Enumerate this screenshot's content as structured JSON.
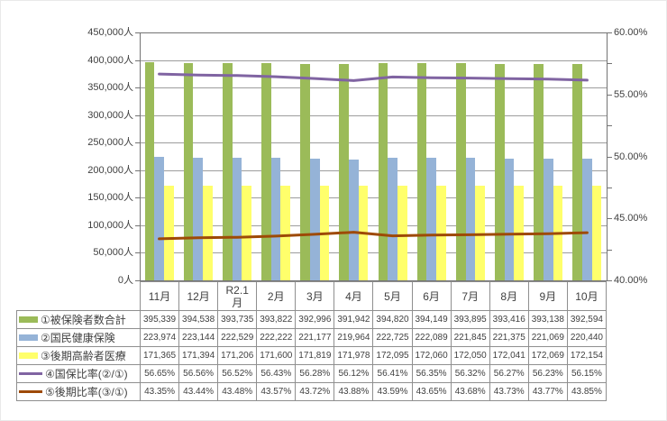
{
  "chart_data": {
    "type": "combo",
    "title": "",
    "grid": "horizontal-major-left-axis",
    "legend_position": "data-table-left",
    "categories": [
      "11月",
      "12月",
      "R2.1\n月",
      "2月",
      "3月",
      "4月",
      "5月",
      "6月",
      "7月",
      "8月",
      "9月",
      "10月"
    ],
    "series": [
      {
        "name": "①被保険者数合計",
        "chart": "bar",
        "axis": "left",
        "color": "#9BBB59",
        "values": [
          395339,
          394538,
          393735,
          393822,
          392996,
          391942,
          394820,
          394149,
          393895,
          393416,
          393138,
          392594
        ],
        "labels": [
          "395,339",
          "394,538",
          "393,735",
          "393,822",
          "392,996",
          "391,942",
          "394,820",
          "394,149",
          "393,895",
          "393,416",
          "393,138",
          "392,594"
        ]
      },
      {
        "name": "②国民健康保険",
        "chart": "bar",
        "axis": "left",
        "color": "#95B3D7",
        "values": [
          223974,
          223144,
          222529,
          222222,
          221177,
          219964,
          222725,
          222089,
          221845,
          221375,
          221069,
          220440
        ],
        "labels": [
          "223,974",
          "223,144",
          "222,529",
          "222,222",
          "221,177",
          "219,964",
          "222,725",
          "222,089",
          "221,845",
          "221,375",
          "221,069",
          "220,440"
        ]
      },
      {
        "name": "③後期高齢者医療",
        "chart": "bar",
        "axis": "left",
        "color": "#FFFF6B",
        "values": [
          171365,
          171394,
          171206,
          171600,
          171819,
          171978,
          172095,
          172060,
          172050,
          172041,
          172069,
          172154
        ],
        "labels": [
          "171,365",
          "171,394",
          "171,206",
          "171,600",
          "171,819",
          "171,978",
          "172,095",
          "172,060",
          "172,050",
          "172,041",
          "172,069",
          "172,154"
        ]
      },
      {
        "name": "④国保比率(②/①)",
        "chart": "line",
        "axis": "right",
        "color": "#8064A2",
        "values": [
          56.65,
          56.56,
          56.52,
          56.43,
          56.28,
          56.12,
          56.41,
          56.35,
          56.32,
          56.27,
          56.23,
          56.15
        ],
        "labels": [
          "56.65%",
          "56.56%",
          "56.52%",
          "56.43%",
          "56.28%",
          "56.12%",
          "56.41%",
          "56.35%",
          "56.32%",
          "56.27%",
          "56.23%",
          "56.15%"
        ]
      },
      {
        "name": "⑤後期比率(③/①)",
        "chart": "line",
        "axis": "right",
        "color": "#9E4A06",
        "values": [
          43.35,
          43.44,
          43.48,
          43.57,
          43.72,
          43.88,
          43.59,
          43.65,
          43.68,
          43.73,
          43.77,
          43.85
        ],
        "labels": [
          "43.35%",
          "43.44%",
          "43.48%",
          "43.57%",
          "43.72%",
          "43.88%",
          "43.59%",
          "43.65%",
          "43.68%",
          "43.73%",
          "43.77%",
          "43.85%"
        ]
      }
    ],
    "left_axis": {
      "min": 0,
      "max": 450000,
      "major_step": 50000,
      "tick_labels": [
        "450,000人",
        "400,000人",
        "350,000人",
        "300,000人",
        "250,000人",
        "200,000人",
        "150,000人",
        "100,000人",
        "50,000人",
        "0人"
      ]
    },
    "right_axis": {
      "min": 40,
      "max": 60,
      "major_step": 5,
      "minor_step": 2.5,
      "tick_labels": [
        "60.00%",
        "55.00%",
        "50.00%",
        "45.00%",
        "40.00%"
      ]
    }
  }
}
